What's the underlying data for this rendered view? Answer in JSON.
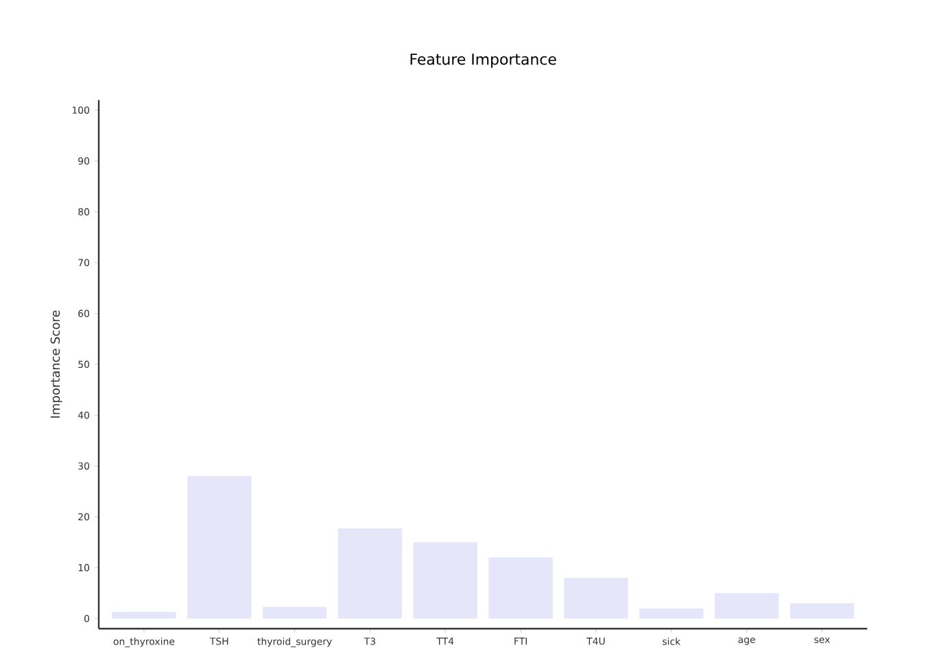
{
  "chart_data": {
    "type": "bar",
    "title": "Feature Importance",
    "ylabel": "Importance Score",
    "categories": [
      "on_thyroxine",
      "TSH",
      "thyroid_surgery",
      "T3",
      "TT4",
      "FTI",
      "T4U",
      "sick",
      "age",
      "sex"
    ],
    "values": [
      1.3,
      28,
      2.3,
      17.7,
      15,
      12,
      8,
      2,
      5,
      3
    ],
    "color": "#e6e6fa",
    "ylim": [
      -2,
      102
    ],
    "yticks": [
      0,
      10,
      20,
      30,
      40,
      50,
      60,
      70,
      80,
      90,
      100
    ],
    "grid": false
  }
}
